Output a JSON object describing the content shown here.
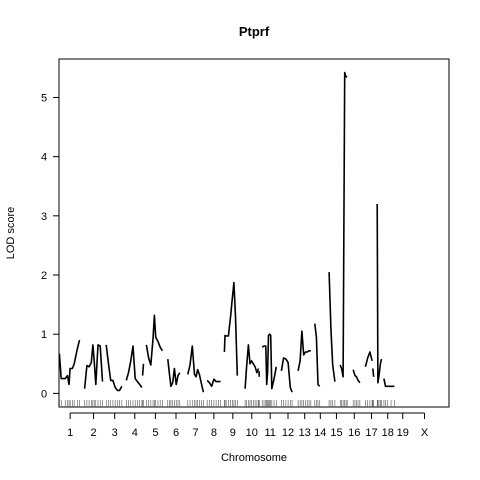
{
  "chart_data": {
    "type": "line",
    "title": "Ptprf",
    "xlabel": "Chromosome",
    "ylabel": "LOD score",
    "ylim": [
      -0.23,
      5.65
    ],
    "yticks": [
      0,
      1,
      2,
      3,
      4,
      5
    ],
    "grid": false,
    "legend": "none",
    "line_color": "#000000",
    "chromosomes": [
      "1",
      "2",
      "3",
      "4",
      "5",
      "6",
      "7",
      "8",
      "9",
      "10",
      "11",
      "12",
      "13",
      "14",
      "15",
      "16",
      "17",
      "18",
      "19",
      "X"
    ],
    "xlim": [
      0,
      1750
    ],
    "chr_ranges": [
      [
        0,
        100
      ],
      [
        110,
        200
      ],
      [
        210,
        290
      ],
      [
        300,
        380
      ],
      [
        390,
        475
      ],
      [
        485,
        565
      ],
      [
        575,
        650
      ],
      [
        660,
        730
      ],
      [
        740,
        820
      ],
      [
        830,
        900
      ],
      [
        910,
        985
      ],
      [
        995,
        1060
      ],
      [
        1070,
        1135
      ],
      [
        1145,
        1200
      ],
      [
        1210,
        1280
      ],
      [
        1290,
        1360
      ],
      [
        1370,
        1435
      ],
      [
        1445,
        1505
      ],
      [
        1515,
        1570
      ],
      [
        1580,
        1700
      ]
    ],
    "series": [
      {
        "chr": "1",
        "x": [
          2,
          10,
          28,
          38,
          45,
          50,
          60,
          68,
          82,
          92
        ],
        "y": [
          0.67,
          0.25,
          0.25,
          0.3,
          0.15,
          0.42,
          0.42,
          0.5,
          0.75,
          0.9
        ]
      },
      {
        "chr": "2",
        "x": [
          115,
          125,
          135,
          145,
          152,
          158,
          165,
          175,
          185,
          195
        ],
        "y": [
          0.08,
          0.47,
          0.45,
          0.52,
          0.82,
          0.55,
          0.15,
          0.82,
          0.8,
          0.2
        ]
      },
      {
        "chr": "3",
        "x": [
          212,
          222,
          232,
          242,
          252,
          262,
          272,
          282
        ],
        "y": [
          0.82,
          0.5,
          0.22,
          0.22,
          0.1,
          0.05,
          0.05,
          0.12
        ]
      },
      {
        "chr": "4",
        "x": [
          302,
          312,
          322,
          332,
          342,
          352,
          362,
          372
        ],
        "y": [
          0.22,
          0.35,
          0.55,
          0.8,
          0.25,
          0.2,
          0.15,
          0.1
        ]
      },
      {
        "chr": "4b",
        "x": [
          375,
          379
        ],
        "y": [
          0.3,
          0.5
        ]
      },
      {
        "chr": "5",
        "x": [
          392,
          402,
          412,
          422,
          428,
          434,
          444,
          454,
          464
        ],
        "y": [
          0.82,
          0.6,
          0.48,
          0.92,
          1.32,
          0.95,
          0.88,
          0.78,
          0.72
        ]
      },
      {
        "chr": "6",
        "x": [
          488,
          495,
          502,
          510,
          518,
          526,
          534,
          542
        ],
        "y": [
          0.58,
          0.35,
          0.12,
          0.18,
          0.42,
          0.15,
          0.3,
          0.35
        ]
      },
      {
        "chr": "7",
        "x": [
          578,
          588,
          598,
          608,
          615,
          622,
          630,
          640,
          648
        ],
        "y": [
          0.32,
          0.48,
          0.8,
          0.32,
          0.28,
          0.4,
          0.32,
          0.15,
          0.02
        ]
      },
      {
        "chr": "8",
        "x": [
          665,
          675,
          685,
          695,
          705,
          715,
          725
        ],
        "y": [
          0.22,
          0.18,
          0.12,
          0.24,
          0.2,
          0.2,
          0.2
        ]
      },
      {
        "chr": "9",
        "x": [
          742,
          745,
          750,
          760,
          770,
          778,
          785,
          792,
          800
        ],
        "y": [
          0.7,
          0.98,
          0.97,
          0.97,
          1.3,
          1.62,
          1.87,
          1.3,
          0.3
        ]
      },
      {
        "chr": "10",
        "x": [
          835,
          842,
          850,
          857,
          864,
          872,
          880,
          888,
          895
        ],
        "y": [
          0.08,
          0.45,
          0.82,
          0.5,
          0.55,
          0.5,
          0.45,
          0.35,
          0.42
        ]
      },
      {
        "chr": "10b",
        "x": [
          897,
          899
        ],
        "y": [
          0.38,
          0.28
        ]
      },
      {
        "chr": "11",
        "x": [
          912,
          920,
          928,
          932,
          936,
          940,
          945,
          950,
          955,
          965,
          975
        ],
        "y": [
          0.78,
          0.8,
          0.8,
          0.15,
          0.35,
          0.98,
          1.0,
          0.98,
          0.08,
          0.25,
          0.45
        ]
      },
      {
        "chr": "12",
        "x": [
          998,
          1008,
          1018,
          1028,
          1038,
          1046
        ],
        "y": [
          0.38,
          0.6,
          0.58,
          0.52,
          0.1,
          0.02
        ]
      },
      {
        "chr": "13",
        "x": [
          1073,
          1082,
          1090,
          1098,
          1106,
          1114,
          1122,
          1130
        ],
        "y": [
          0.38,
          0.55,
          1.05,
          0.65,
          0.7,
          0.7,
          0.72,
          0.72
        ]
      },
      {
        "chr": "14",
        "x": [
          1148,
          1155,
          1162,
          1170
        ],
        "y": [
          1.18,
          0.95,
          0.15,
          0.12
        ]
      },
      {
        "chr": "15",
        "x": [
          1212,
          1220,
          1228,
          1238
        ],
        "y": [
          2.05,
          1.1,
          0.48,
          0.2
        ]
      },
      {
        "chr": "16",
        "x": [
          1262,
          1268,
          1275,
          1282,
          1288,
          1293
        ],
        "y": [
          0.48,
          0.42,
          0.28,
          5.42,
          5.35,
          5.35
        ]
      },
      {
        "chr": "17",
        "x": [
          1320,
          1328,
          1335,
          1342,
          1350
        ],
        "y": [
          0.4,
          0.3,
          0.28,
          0.22,
          0.18
        ]
      },
      {
        "chr": "18",
        "x": [
          1375,
          1385,
          1395,
          1405
        ],
        "y": [
          0.45,
          0.6,
          0.7,
          0.55
        ]
      },
      {
        "chr": "18b",
        "x": [
          1408,
          1412
        ],
        "y": [
          0.42,
          0.28
        ]
      },
      {
        "chr": "19",
        "x": [
          1428,
          1431,
          1436,
          1442,
          1447
        ],
        "y": [
          3.2,
          0.18,
          0.3,
          0.5,
          0.58
        ]
      },
      {
        "chr": "X",
        "x": [
          1458,
          1465,
          1475,
          1490,
          1505
        ],
        "y": [
          0.25,
          0.12,
          0.12,
          0.12,
          0.12
        ]
      }
    ]
  }
}
